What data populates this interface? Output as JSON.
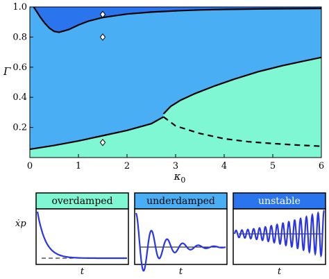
{
  "colors": {
    "overdamped": "#7ff7d3",
    "underdamped": "#4aaef5",
    "unstable": "#2a74ee",
    "curve": "#000000",
    "trace": "#2a36e6",
    "axis": "#000000"
  },
  "chart_data": [
    {
      "type": "area",
      "xlabel": "κ0",
      "ylabel": "Γ",
      "xlim": [
        0,
        6
      ],
      "ylim": [
        0,
        1.0
      ],
      "xticks": [
        "0",
        "1",
        "2",
        "3",
        "4",
        "5",
        "6"
      ],
      "yticks": [
        "0.2",
        "0.4",
        "0.6",
        "0.8",
        "1.0"
      ],
      "regions": [
        "overdamped",
        "underdamped",
        "unstable"
      ],
      "boundaries": [
        {
          "region": "unstable/underdamped",
          "style": "solid",
          "x": [
            0.3,
            0.4,
            0.5,
            0.6,
            0.8,
            1.0,
            1.2,
            1.5,
            2.0,
            2.5,
            3.0,
            3.5,
            4.0,
            5.0,
            6.0
          ],
          "y": [
            0.895,
            0.86,
            0.838,
            0.832,
            0.85,
            0.88,
            0.905,
            0.93,
            0.953,
            0.966,
            0.974,
            0.98,
            0.984,
            0.988,
            0.99
          ]
        },
        {
          "region": "underdamped/overdamped lower",
          "style": "solid",
          "x": [
            0.0,
            0.5,
            1.0,
            1.5,
            2.0,
            2.5,
            2.75
          ],
          "y": [
            0.055,
            0.08,
            0.11,
            0.145,
            0.18,
            0.225,
            0.27
          ]
        },
        {
          "region": "underdamped/overdamped upper",
          "style": "solid",
          "x": [
            2.75,
            2.9,
            3.1,
            3.4,
            3.8,
            4.2,
            4.7,
            5.2,
            5.6,
            6.0
          ],
          "y": [
            0.29,
            0.34,
            0.38,
            0.425,
            0.475,
            0.52,
            0.57,
            0.61,
            0.638,
            0.665
          ]
        },
        {
          "region": "continuation",
          "style": "dashed",
          "x": [
            2.75,
            3.0,
            3.5,
            4.0,
            4.5,
            5.0,
            5.5,
            6.0
          ],
          "y": [
            0.27,
            0.21,
            0.16,
            0.125,
            0.105,
            0.093,
            0.083,
            0.075
          ]
        }
      ],
      "markers": [
        {
          "x": 1.5,
          "y": 0.95,
          "shape": "diamond"
        },
        {
          "x": 1.5,
          "y": 0.8,
          "shape": "diamond"
        },
        {
          "x": 1.5,
          "y": 0.1,
          "shape": "diamond"
        }
      ]
    },
    {
      "type": "line",
      "title": "overdamped",
      "xlabel": "t",
      "ylabel": "ẋp",
      "series": [
        {
          "kind": "decay"
        }
      ],
      "baseline": "dashed"
    },
    {
      "type": "line",
      "title": "underdamped",
      "xlabel": "t",
      "ylabel": "",
      "series": [
        {
          "kind": "damped-oscillation"
        }
      ],
      "baseline": "dashed"
    },
    {
      "type": "line",
      "title": "unstable",
      "xlabel": "t",
      "ylabel": "",
      "series": [
        {
          "kind": "growing-oscillation"
        }
      ],
      "baseline": "dashed"
    }
  ]
}
